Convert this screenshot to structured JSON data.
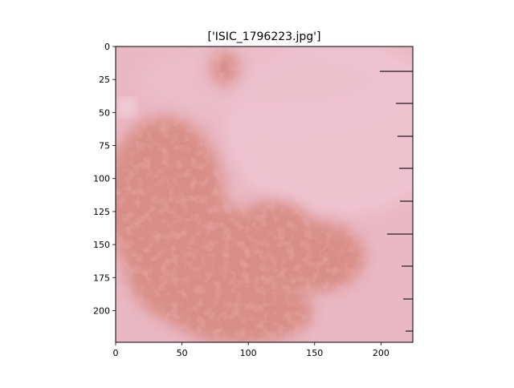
{
  "figure": {
    "title": "['ISIC_1796223.jpg']"
  },
  "chart_data": {
    "type": "image",
    "title": "['ISIC_1796223.jpg']",
    "image_size": [
      224,
      224
    ],
    "xlim": [
      0,
      224
    ],
    "ylim": [
      224,
      0
    ],
    "x_ticks": [
      0,
      50,
      100,
      150,
      200
    ],
    "y_ticks": [
      0,
      25,
      50,
      75,
      100,
      125,
      150,
      175,
      200
    ],
    "grid": false,
    "colors": {
      "skin_base": "#eab6c2",
      "lesion_pigment": "#cc6e62",
      "lesion_dark": "#b35446",
      "ruler_mark": "#6e5a60"
    }
  }
}
